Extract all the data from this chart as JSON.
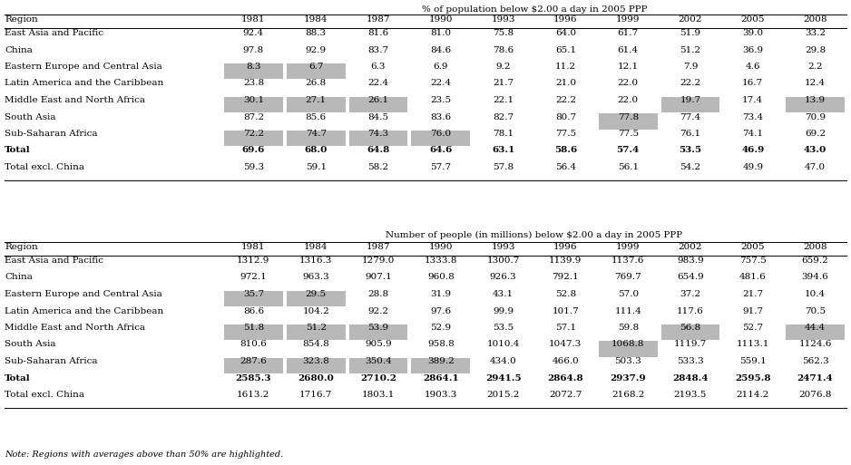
{
  "title_top": "% of population below $2.00 a day in 2005 PPP",
  "title_bottom": "Number of people (in millions) below $2.00 a day in 2005 PPP",
  "note": "Note: Regions with averages above than 50% are highlighted.",
  "years": [
    "1981",
    "1984",
    "1987",
    "1990",
    "1993",
    "1996",
    "1999",
    "2002",
    "2005",
    "2008"
  ],
  "top_table": {
    "rows": [
      [
        "East Asia and Pacific",
        "92.4",
        "88.3",
        "81.6",
        "81.0",
        "75.8",
        "64.0",
        "61.7",
        "51.9",
        "39.0",
        "33.2"
      ],
      [
        "China",
        "97.8",
        "92.9",
        "83.7",
        "84.6",
        "78.6",
        "65.1",
        "61.4",
        "51.2",
        "36.9",
        "29.8"
      ],
      [
        "Eastern Europe and Central Asia",
        "8.3",
        "6.7",
        "6.3",
        "6.9",
        "9.2",
        "11.2",
        "12.1",
        "7.9",
        "4.6",
        "2.2"
      ],
      [
        "Latin America and the Caribbean",
        "23.8",
        "26.8",
        "22.4",
        "22.4",
        "21.7",
        "21.0",
        "22.0",
        "22.2",
        "16.7",
        "12.4"
      ],
      [
        "Middle East and North Africa",
        "30.1",
        "27.1",
        "26.1",
        "23.5",
        "22.1",
        "22.2",
        "22.0",
        "19.7",
        "17.4",
        "13.9"
      ],
      [
        "South Asia",
        "87.2",
        "85.6",
        "84.5",
        "83.6",
        "82.7",
        "80.7",
        "77.8",
        "77.4",
        "73.4",
        "70.9"
      ],
      [
        "Sub-Saharan Africa",
        "72.2",
        "74.7",
        "74.3",
        "76.0",
        "78.1",
        "77.5",
        "77.5",
        "76.1",
        "74.1",
        "69.2"
      ],
      [
        "Total",
        "69.6",
        "68.0",
        "64.8",
        "64.6",
        "63.1",
        "58.6",
        "57.4",
        "53.5",
        "46.9",
        "43.0"
      ],
      [
        "Total excl. China",
        "59.3",
        "59.1",
        "58.2",
        "57.7",
        "57.8",
        "56.4",
        "56.1",
        "54.2",
        "49.9",
        "47.0"
      ]
    ],
    "bold_rows": [
      7
    ],
    "highlights": {
      "2": [
        1,
        2
      ],
      "4": [
        1,
        2,
        3,
        8,
        10
      ],
      "5": [
        7
      ],
      "6": [
        1,
        2,
        3,
        4
      ]
    }
  },
  "bottom_table": {
    "rows": [
      [
        "East Asia and Pacific",
        "1312.9",
        "1316.3",
        "1279.0",
        "1333.8",
        "1300.7",
        "1139.9",
        "1137.6",
        "983.9",
        "757.5",
        "659.2"
      ],
      [
        "China",
        "972.1",
        "963.3",
        "907.1",
        "960.8",
        "926.3",
        "792.1",
        "769.7",
        "654.9",
        "481.6",
        "394.6"
      ],
      [
        "Eastern Europe and Central Asia",
        "35.7",
        "29.5",
        "28.8",
        "31.9",
        "43.1",
        "52.8",
        "57.0",
        "37.2",
        "21.7",
        "10.4"
      ],
      [
        "Latin America and the Caribbean",
        "86.6",
        "104.2",
        "92.2",
        "97.6",
        "99.9",
        "101.7",
        "111.4",
        "117.6",
        "91.7",
        "70.5"
      ],
      [
        "Middle East and North Africa",
        "51.8",
        "51.2",
        "53.9",
        "52.9",
        "53.5",
        "57.1",
        "59.8",
        "56.8",
        "52.7",
        "44.4"
      ],
      [
        "South Asia",
        "810.6",
        "854.8",
        "905.9",
        "958.8",
        "1010.4",
        "1047.3",
        "1068.8",
        "1119.7",
        "1113.1",
        "1124.6"
      ],
      [
        "Sub-Saharan Africa",
        "287.6",
        "323.8",
        "350.4",
        "389.2",
        "434.0",
        "466.0",
        "503.3",
        "533.3",
        "559.1",
        "562.3"
      ],
      [
        "Total",
        "2585.3",
        "2680.0",
        "2710.2",
        "2864.1",
        "2941.5",
        "2864.8",
        "2937.9",
        "2848.4",
        "2595.8",
        "2471.4"
      ],
      [
        "Total excl. China",
        "1613.2",
        "1716.7",
        "1803.1",
        "1903.3",
        "2015.2",
        "2072.7",
        "2168.2",
        "2193.5",
        "2114.2",
        "2076.8"
      ]
    ],
    "bold_rows": [
      7
    ],
    "highlights": {
      "2": [
        1,
        2
      ],
      "4": [
        1,
        2,
        3,
        8,
        10
      ],
      "5": [
        7
      ],
      "6": [
        1,
        2,
        3,
        4
      ]
    }
  },
  "highlight_color": "#b8b8b8",
  "bg_color": "#ffffff",
  "font_size": 7.5
}
